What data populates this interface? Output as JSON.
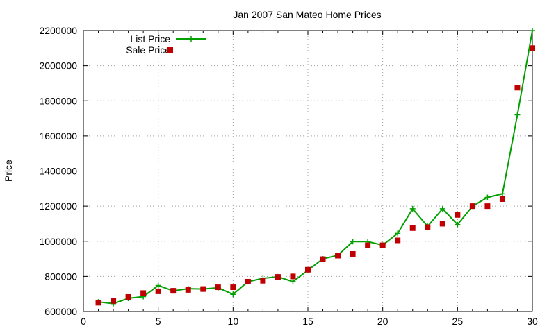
{
  "chart_data": {
    "type": "line",
    "title": "Jan 2007 San Mateo Home Prices",
    "xlabel": "",
    "ylabel": "Price",
    "xlim": [
      0,
      30
    ],
    "ylim": [
      600000,
      2200000
    ],
    "xticks": [
      0,
      5,
      10,
      15,
      20,
      25,
      30
    ],
    "yticks": [
      600000,
      800000,
      1000000,
      1200000,
      1400000,
      1600000,
      1800000,
      2000000,
      2200000
    ],
    "grid": true,
    "legend_position": "top-left",
    "x": [
      1,
      2,
      3,
      4,
      5,
      6,
      7,
      8,
      9,
      10,
      11,
      12,
      13,
      14,
      15,
      16,
      17,
      18,
      19,
      20,
      21,
      22,
      23,
      24,
      25,
      26,
      27,
      28,
      29,
      30
    ],
    "series": [
      {
        "name": "List Price",
        "style": "line-plus",
        "color": "#00a000",
        "values": [
          655000,
          645000,
          675000,
          685000,
          748000,
          718000,
          730000,
          728000,
          735000,
          698000,
          770000,
          789000,
          798000,
          770000,
          835000,
          900000,
          920000,
          998000,
          998000,
          978000,
          1045000,
          1185000,
          1085000,
          1185000,
          1095000,
          1200000,
          1250000,
          1270000,
          1720000,
          2200000
        ]
      },
      {
        "name": "Sale Price",
        "style": "square",
        "color": "#c00000",
        "values": [
          650000,
          660000,
          683000,
          705000,
          715000,
          718000,
          723000,
          728000,
          738000,
          738000,
          770000,
          775000,
          797000,
          800000,
          838000,
          898000,
          918000,
          928000,
          977000,
          977000,
          1005000,
          1075000,
          1080000,
          1100000,
          1150000,
          1200000,
          1200000,
          1240000,
          1875000,
          2100000
        ]
      }
    ]
  }
}
